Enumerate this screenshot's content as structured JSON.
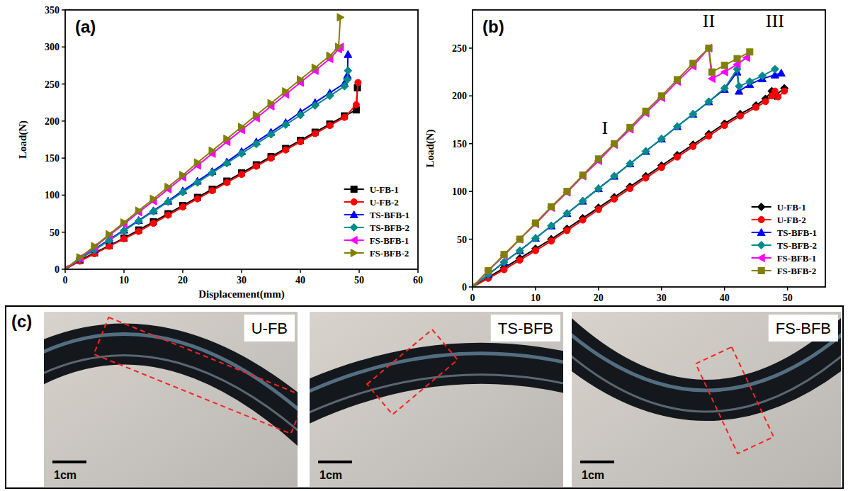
{
  "chart_data": [
    {
      "type": "line",
      "title": "(a)",
      "x_label": "Displacement(mm)",
      "y_label": "Load(N)",
      "xlim": [
        0,
        60
      ],
      "ylim": [
        0,
        350
      ],
      "xticks": [
        0,
        10,
        20,
        30,
        40,
        50,
        60
      ],
      "yticks": [
        0,
        50,
        100,
        150,
        200,
        250,
        300,
        350
      ],
      "grid": false,
      "legend": "lower right",
      "series": [
        {
          "name": "U-FB-1",
          "color": "#000000",
          "marker": "square",
          "x": [
            0,
            2.5,
            5,
            7.5,
            10,
            12.5,
            15,
            17.5,
            20,
            22.5,
            25,
            27.5,
            30,
            32.5,
            35,
            37.5,
            40,
            42.5,
            45,
            47.5,
            49.5,
            49.7
          ],
          "values": [
            0,
            12,
            22,
            32,
            42,
            53,
            64,
            75,
            86,
            97,
            108,
            119,
            130,
            141,
            152,
            163,
            174,
            185,
            196,
            207,
            215,
            245
          ]
        },
        {
          "name": "U-FB-2",
          "color": "#ff0000",
          "marker": "circle",
          "x": [
            0,
            2.5,
            5,
            7.5,
            10,
            12.5,
            15,
            17.5,
            20,
            22.5,
            25,
            27.5,
            30,
            32.5,
            35,
            37.5,
            40,
            42.5,
            45,
            47.5,
            49.5,
            49.8
          ],
          "values": [
            0,
            11,
            21,
            31,
            41,
            51,
            62,
            73,
            84,
            95,
            106,
            117,
            128,
            139,
            150,
            161,
            172,
            183,
            194,
            205,
            222,
            252
          ]
        },
        {
          "name": "TS-BFB-1",
          "color": "#0000ff",
          "marker": "triangle-up",
          "x": [
            0,
            2.5,
            5,
            7.5,
            10,
            12.5,
            15,
            17.5,
            20,
            22.5,
            25,
            27.5,
            30,
            32.5,
            35,
            37.5,
            40,
            42.5,
            45,
            47.5,
            48,
            48.1
          ],
          "values": [
            0,
            14,
            27,
            40,
            53,
            66,
            79,
            92,
            106,
            119,
            132,
            145,
            159,
            172,
            185,
            198,
            212,
            225,
            238,
            251,
            262,
            290
          ]
        },
        {
          "name": "TS-BFB-2",
          "color": "#008b8b",
          "marker": "diamond",
          "x": [
            0,
            2.5,
            5,
            7.5,
            10,
            12.5,
            15,
            17.5,
            20,
            22.5,
            25,
            27.5,
            30,
            32.5,
            35,
            37.5,
            40,
            42.5,
            45,
            47.5,
            48,
            48.1
          ],
          "values": [
            0,
            14,
            26,
            39,
            52,
            65,
            78,
            91,
            104,
            117,
            130,
            143,
            156,
            169,
            182,
            195,
            208,
            221,
            234,
            247,
            256,
            268
          ]
        },
        {
          "name": "FS-BFB-1",
          "color": "#ff00ff",
          "marker": "triangle-left",
          "x": [
            0,
            2.5,
            5,
            7.5,
            10,
            12.5,
            15,
            17.5,
            20,
            22.5,
            25,
            27.5,
            30,
            32.5,
            35,
            37.5,
            40,
            42.5,
            45,
            46.5,
            46.8
          ],
          "values": [
            0,
            15,
            30,
            46,
            61,
            77,
            92,
            108,
            124,
            140,
            156,
            172,
            188,
            204,
            220,
            236,
            252,
            268,
            284,
            297,
            300
          ]
        },
        {
          "name": "FS-BFB-2",
          "color": "#808000",
          "marker": "triangle-right",
          "x": [
            0,
            2.5,
            5,
            7.5,
            10,
            12.5,
            15,
            17.5,
            20,
            22.5,
            25,
            27.5,
            30,
            32.5,
            35,
            37.5,
            40,
            42.5,
            45,
            46.5,
            46.8
          ],
          "values": [
            0,
            16,
            31,
            47,
            63,
            79,
            95,
            111,
            127,
            144,
            160,
            176,
            192,
            208,
            224,
            240,
            256,
            272,
            288,
            300,
            340
          ]
        }
      ]
    },
    {
      "type": "line",
      "title": "(b)",
      "x_label": "Displacement(mm)",
      "y_label": "Load(N)",
      "xlim": [
        0,
        56
      ],
      "ylim": [
        0,
        290
      ],
      "xticks": [
        0,
        10,
        20,
        30,
        40,
        50
      ],
      "yticks": [
        0,
        50,
        100,
        150,
        200,
        250
      ],
      "grid": false,
      "legend": "lower right",
      "annotations": [
        {
          "text": "I",
          "x": 21,
          "y": 160
        },
        {
          "text": "II",
          "x": 37.5,
          "y": 272
        },
        {
          "text": "III",
          "x": 48,
          "y": 272
        }
      ],
      "series": [
        {
          "name": "U-FB-1",
          "color": "#000000",
          "marker": "diamond",
          "x": [
            0,
            2.5,
            5,
            7.5,
            10,
            12.5,
            15,
            17.5,
            20,
            22.5,
            25,
            27.5,
            30,
            32.5,
            35,
            37.5,
            40,
            42.5,
            45,
            46.5,
            47.5,
            48,
            49.5
          ],
          "values": [
            0,
            10,
            20,
            30,
            40,
            50,
            61,
            72,
            83,
            94,
            105,
            116,
            127,
            138,
            149,
            160,
            171,
            181,
            190,
            197,
            205,
            200,
            208
          ]
        },
        {
          "name": "U-FB-2",
          "color": "#ff0000",
          "marker": "circle",
          "x": [
            0,
            2.5,
            5,
            7.5,
            10,
            12.5,
            15,
            17.5,
            20,
            22.5,
            25,
            27.5,
            30,
            32.5,
            35,
            37.5,
            40,
            42.5,
            45,
            46.5,
            47.5,
            48,
            48.5,
            49.5
          ],
          "values": [
            0,
            9,
            18,
            28,
            38,
            48,
            59,
            70,
            81,
            92,
            103,
            114,
            125,
            136,
            147,
            158,
            169,
            179,
            188,
            194,
            200,
            205,
            199,
            205
          ]
        },
        {
          "name": "TS-BFB-1",
          "color": "#0000ff",
          "marker": "triangle-up",
          "x": [
            0,
            2.5,
            5,
            7.5,
            10,
            12.5,
            15,
            17.5,
            20,
            22.5,
            25,
            27.5,
            30,
            32.5,
            35,
            37.5,
            40,
            42,
            42.3,
            44,
            46,
            48,
            49
          ],
          "values": [
            0,
            13,
            26,
            38,
            51,
            64,
            77,
            90,
            103,
            116,
            129,
            142,
            155,
            168,
            181,
            194,
            207,
            225,
            205,
            212,
            218,
            222,
            224
          ]
        },
        {
          "name": "TS-BFB-2",
          "color": "#008b8b",
          "marker": "diamond",
          "x": [
            0,
            2.5,
            5,
            7.5,
            10,
            12.5,
            15,
            17.5,
            20,
            22.5,
            25,
            27.5,
            30,
            32.5,
            35,
            37.5,
            40,
            42,
            42.3,
            44,
            46,
            48
          ],
          "values": [
            0,
            13,
            26,
            38,
            51,
            64,
            77,
            90,
            103,
            116,
            129,
            142,
            155,
            168,
            181,
            194,
            208,
            228,
            210,
            215,
            221,
            228
          ]
        },
        {
          "name": "FS-BFB-1",
          "color": "#ff00ff",
          "marker": "triangle-left",
          "x": [
            0,
            2.5,
            5,
            7.5,
            10,
            12.5,
            15,
            17.5,
            20,
            22.5,
            25,
            27.5,
            30,
            32.5,
            35,
            37.5,
            38,
            40,
            42,
            43.5
          ],
          "values": [
            0,
            17,
            33,
            50,
            66,
            83,
            99,
            116,
            132,
            149,
            165,
            182,
            198,
            215,
            231,
            250,
            218,
            225,
            233,
            240
          ]
        },
        {
          "name": "FS-BFB-2",
          "color": "#808000",
          "marker": "square",
          "x": [
            0,
            2.5,
            5,
            7.5,
            10,
            12.5,
            15,
            17.5,
            20,
            22.5,
            25,
            27.5,
            30,
            32.5,
            35,
            37.5,
            38,
            40,
            42,
            44
          ],
          "values": [
            0,
            17,
            34,
            50,
            67,
            84,
            100,
            117,
            134,
            150,
            167,
            184,
            200,
            217,
            234,
            250,
            225,
            232,
            239,
            246
          ]
        }
      ]
    }
  ],
  "photo_panel": {
    "label": "(c)",
    "photos": [
      {
        "label": "U-FB",
        "scale_bar": "1cm"
      },
      {
        "label": "TS-BFB",
        "scale_bar": "1cm"
      },
      {
        "label": "FS-BFB",
        "scale_bar": "1cm"
      }
    ]
  }
}
